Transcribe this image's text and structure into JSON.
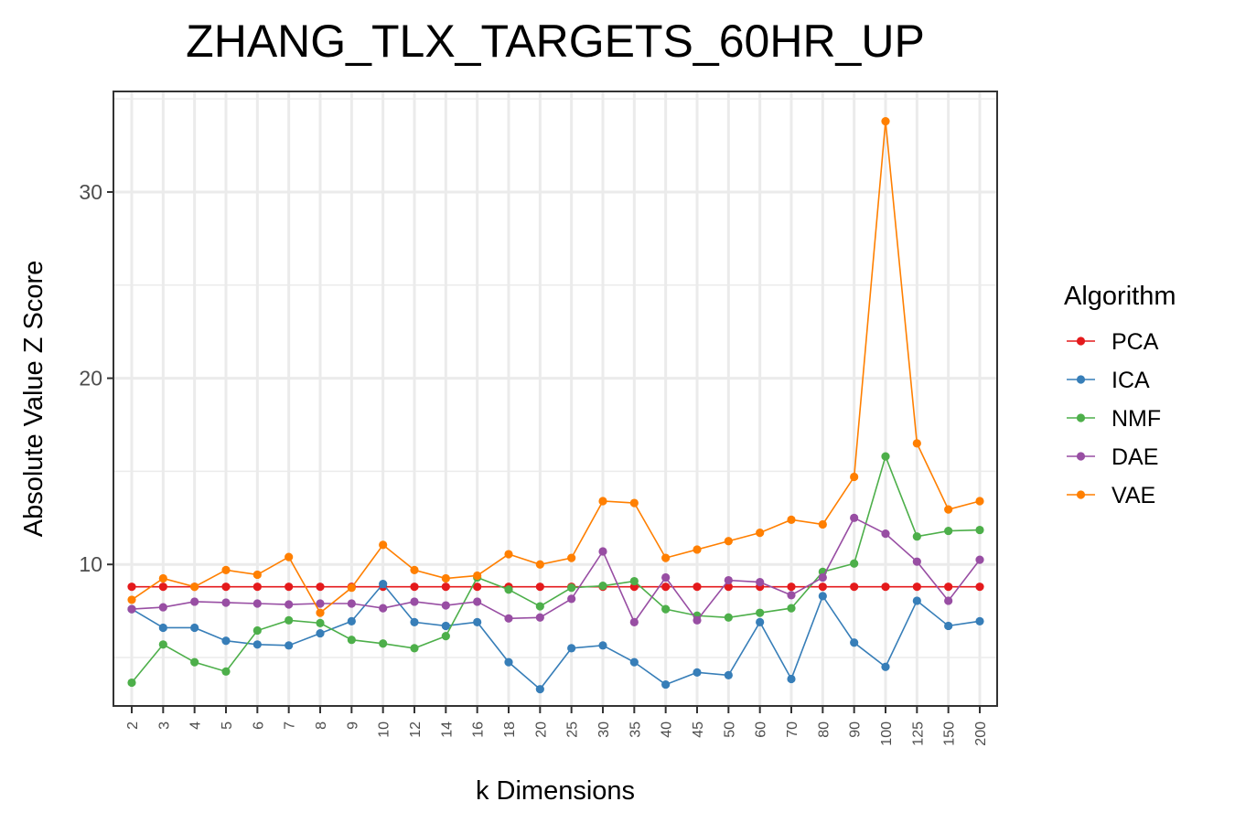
{
  "chart_data": {
    "type": "line",
    "title": "ZHANG_TLX_TARGETS_60HR_UP",
    "xlabel": "k Dimensions",
    "ylabel": "Absolute Value Z Score",
    "categories": [
      "2",
      "3",
      "4",
      "5",
      "6",
      "7",
      "8",
      "9",
      "10",
      "12",
      "14",
      "16",
      "18",
      "20",
      "25",
      "30",
      "35",
      "40",
      "45",
      "50",
      "60",
      "70",
      "80",
      "90",
      "100",
      "125",
      "150",
      "200"
    ],
    "ylim": [
      2.4,
      35.4
    ],
    "yticks": [
      10,
      20,
      30
    ],
    "grid": true,
    "legend": {
      "title": "Algorithm",
      "position": "right"
    },
    "series": [
      {
        "name": "PCA",
        "color": "#E41A1C",
        "values": [
          8.8,
          8.8,
          8.8,
          8.8,
          8.8,
          8.8,
          8.8,
          8.8,
          8.8,
          8.8,
          8.8,
          8.8,
          8.8,
          8.8,
          8.8,
          8.8,
          8.8,
          8.8,
          8.8,
          8.8,
          8.8,
          8.8,
          8.8,
          8.8,
          8.8,
          8.8,
          8.8,
          8.8
        ]
      },
      {
        "name": "ICA",
        "color": "#377EB8",
        "values": [
          7.6,
          6.6,
          6.6,
          5.9,
          5.7,
          5.65,
          6.3,
          6.95,
          8.95,
          6.9,
          6.7,
          6.9,
          4.75,
          3.3,
          5.5,
          5.65,
          4.75,
          3.55,
          4.2,
          4.05,
          6.9,
          3.85,
          8.3,
          5.8,
          4.5,
          8.05,
          6.7,
          6.95
        ]
      },
      {
        "name": "NMF",
        "color": "#4DAF4A",
        "values": [
          3.65,
          5.7,
          4.75,
          4.25,
          6.45,
          7.0,
          6.85,
          5.95,
          5.75,
          5.5,
          6.15,
          9.3,
          8.65,
          7.75,
          8.75,
          8.85,
          9.1,
          7.6,
          7.25,
          7.15,
          7.4,
          7.65,
          9.6,
          10.05,
          15.8,
          11.5,
          11.8,
          11.85
        ]
      },
      {
        "name": "DAE",
        "color": "#984EA3",
        "values": [
          7.6,
          7.7,
          8.0,
          7.95,
          7.9,
          7.85,
          7.9,
          7.9,
          7.65,
          8.0,
          7.8,
          8.0,
          7.1,
          7.15,
          8.15,
          10.7,
          6.9,
          9.3,
          7.0,
          9.15,
          9.05,
          8.35,
          9.3,
          12.5,
          11.65,
          10.15,
          8.05,
          10.25
        ]
      },
      {
        "name": "VAE",
        "color": "#FF7F00",
        "values": [
          8.1,
          9.25,
          8.8,
          9.7,
          9.45,
          10.4,
          7.4,
          8.75,
          11.05,
          9.7,
          9.25,
          9.4,
          10.55,
          10.0,
          10.35,
          13.4,
          13.3,
          10.35,
          10.8,
          11.25,
          11.7,
          12.4,
          12.15,
          14.7,
          33.8,
          16.5,
          12.95,
          13.4
        ]
      }
    ]
  }
}
